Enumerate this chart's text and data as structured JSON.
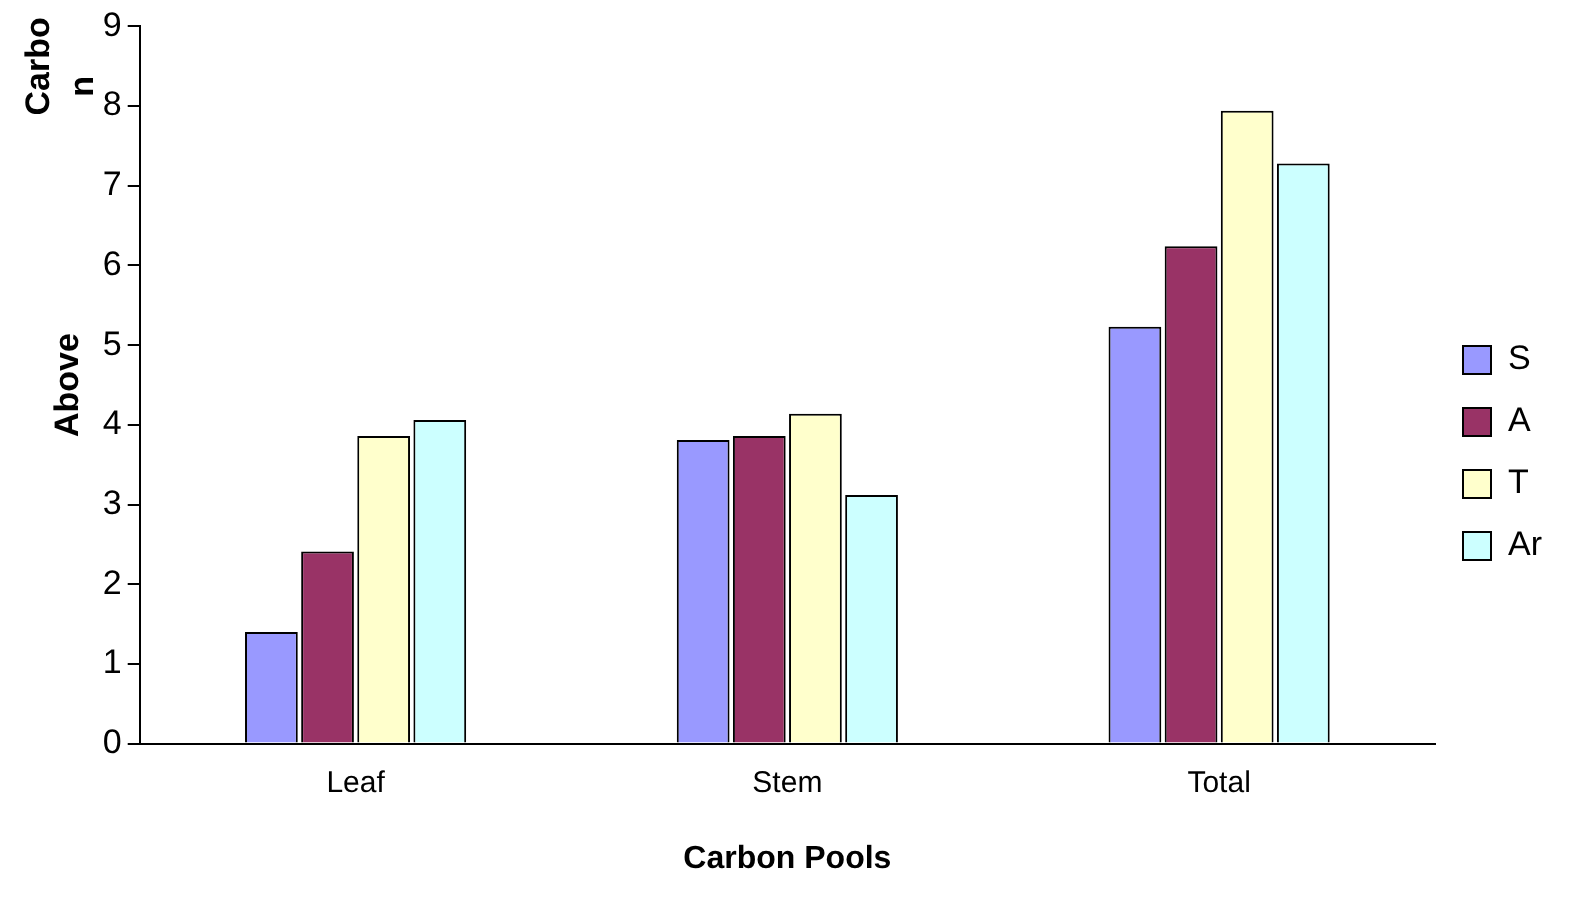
{
  "chart_data": {
    "type": "bar",
    "xlabel": "Carbon Pools",
    "ylabel": "Above",
    "annotations": [
      "Carbo",
      "n"
    ],
    "categories": [
      "Leaf",
      "Stem",
      "Total"
    ],
    "series": [
      {
        "name": "S",
        "color": "#9999ff",
        "values": [
          1.4,
          3.81,
          5.23
        ]
      },
      {
        "name": "A",
        "color": "#993366",
        "values": [
          2.41,
          3.86,
          6.24
        ]
      },
      {
        "name": "T",
        "color": "#ffffcc",
        "values": [
          3.86,
          4.14,
          7.94
        ]
      },
      {
        "name": "Ar",
        "color": "#ccffff",
        "values": [
          4.06,
          3.12,
          7.28
        ]
      }
    ],
    "ylim": [
      0,
      9
    ],
    "yticks": [
      0,
      1,
      2,
      3,
      4,
      5,
      6,
      7,
      8,
      9
    ],
    "grid": false,
    "legend": "right"
  }
}
